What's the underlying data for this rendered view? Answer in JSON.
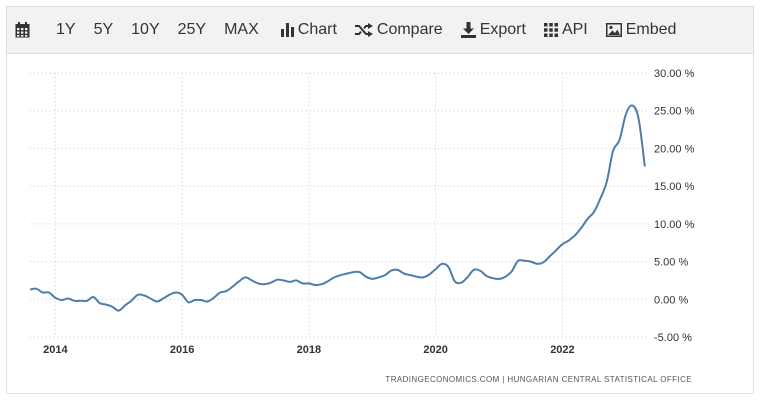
{
  "toolbar": {
    "calendar_icon": "calendar-icon",
    "ranges": [
      "1Y",
      "5Y",
      "10Y",
      "25Y",
      "MAX"
    ],
    "chart_label": "Chart",
    "compare_label": "Compare",
    "export_label": "Export",
    "api_label": "API",
    "embed_label": "Embed"
  },
  "colors": {
    "line": "#4f7cab",
    "grid": "#cccccc",
    "toolbar_bg": "#f2f2f2"
  },
  "credit": "TRADINGECONOMICS.COM  |  HUNGARIAN CENTRAL STATISTICAL OFFICE",
  "chart_data": {
    "type": "line",
    "title": "",
    "xlabel": "",
    "ylabel": "",
    "ylim": [
      -5,
      30
    ],
    "xlim": [
      2013.6,
      2023.35
    ],
    "grid": true,
    "y_ticks": [
      30,
      25,
      20,
      15,
      10,
      5,
      0,
      -5
    ],
    "y_tick_labels": [
      "30.00 %",
      "25.00 %",
      "20.00 %",
      "15.00 %",
      "10.00 %",
      "5.00 %",
      "0.00 %",
      "-5.00 %"
    ],
    "x_ticks": [
      2014,
      2016,
      2018,
      2020,
      2022
    ],
    "x_tick_labels": [
      "2014",
      "2016",
      "2018",
      "2020",
      "2022"
    ],
    "series": [
      {
        "name": "",
        "x": [
          2013.6,
          2013.7,
          2013.8,
          2013.9,
          2014.0,
          2014.1,
          2014.2,
          2014.3,
          2014.4,
          2014.5,
          2014.6,
          2014.7,
          2014.8,
          2014.9,
          2015.0,
          2015.1,
          2015.2,
          2015.3,
          2015.4,
          2015.5,
          2015.6,
          2015.7,
          2015.8,
          2015.9,
          2016.0,
          2016.1,
          2016.2,
          2016.3,
          2016.4,
          2016.5,
          2016.6,
          2016.7,
          2016.8,
          2016.9,
          2017.0,
          2017.1,
          2017.2,
          2017.3,
          2017.4,
          2017.5,
          2017.6,
          2017.7,
          2017.8,
          2017.9,
          2018.0,
          2018.1,
          2018.2,
          2018.3,
          2018.4,
          2018.5,
          2018.6,
          2018.7,
          2018.8,
          2018.9,
          2019.0,
          2019.1,
          2019.2,
          2019.3,
          2019.4,
          2019.5,
          2019.6,
          2019.7,
          2019.8,
          2019.9,
          2020.0,
          2020.1,
          2020.2,
          2020.3,
          2020.4,
          2020.5,
          2020.6,
          2020.7,
          2020.8,
          2020.9,
          2021.0,
          2021.1,
          2021.2,
          2021.3,
          2021.4,
          2021.5,
          2021.6,
          2021.7,
          2021.8,
          2021.9,
          2022.0,
          2022.1,
          2022.2,
          2022.3,
          2022.4,
          2022.5,
          2022.6,
          2022.7,
          2022.8,
          2022.9,
          2023.0,
          2023.1,
          2023.2,
          2023.3
        ],
        "y": [
          1.3,
          1.4,
          0.9,
          0.9,
          0.2,
          -0.1,
          0.1,
          -0.2,
          -0.2,
          -0.2,
          0.3,
          -0.5,
          -0.7,
          -1.0,
          -1.5,
          -0.8,
          -0.2,
          0.6,
          0.5,
          0.1,
          -0.3,
          0.1,
          0.6,
          0.9,
          0.6,
          -0.4,
          -0.1,
          -0.1,
          -0.3,
          0.2,
          0.9,
          1.1,
          1.7,
          2.4,
          2.9,
          2.5,
          2.1,
          2.0,
          2.2,
          2.6,
          2.5,
          2.3,
          2.5,
          2.1,
          2.1,
          1.9,
          2.0,
          2.4,
          2.9,
          3.2,
          3.4,
          3.6,
          3.6,
          3.0,
          2.7,
          2.9,
          3.2,
          3.8,
          3.9,
          3.4,
          3.2,
          3.0,
          2.9,
          3.3,
          4.0,
          4.7,
          4.3,
          2.4,
          2.2,
          2.9,
          3.9,
          3.8,
          3.1,
          2.8,
          2.7,
          3.0,
          3.7,
          5.1,
          5.1,
          5.0,
          4.7,
          4.9,
          5.7,
          6.5,
          7.3,
          7.8,
          8.5,
          9.5,
          10.7,
          11.6,
          13.4,
          15.6,
          19.7,
          21.1,
          24.5,
          25.7,
          24.0,
          17.6
        ]
      }
    ]
  }
}
